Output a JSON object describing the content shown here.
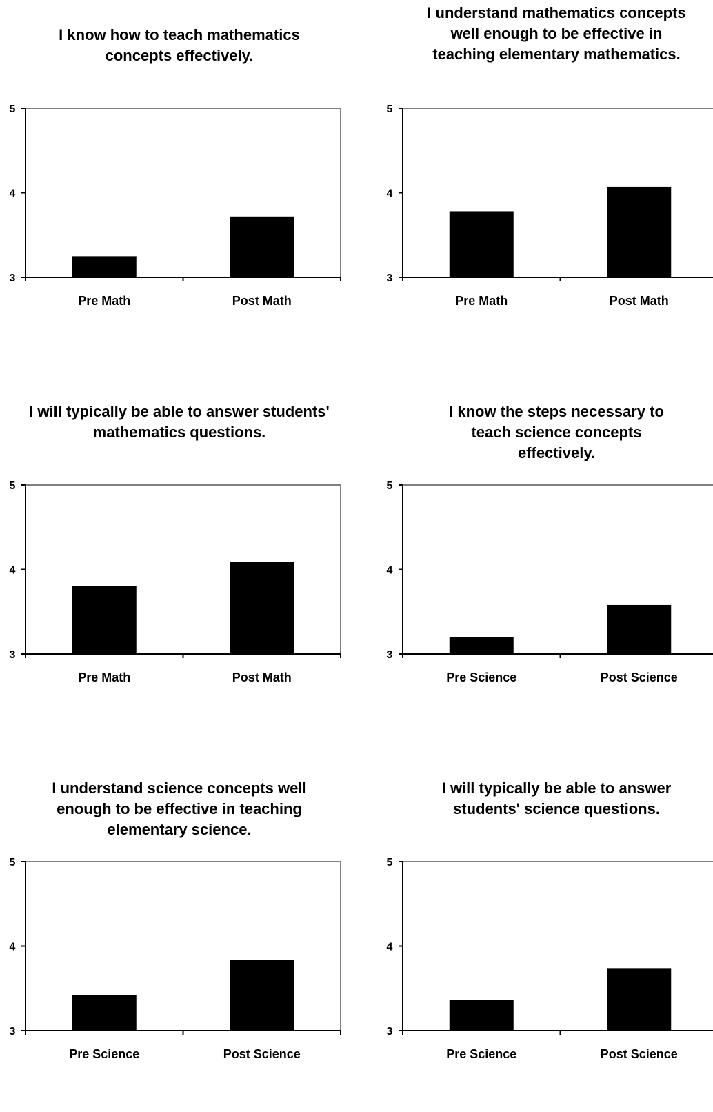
{
  "chart_data": [
    {
      "type": "bar",
      "title": "I know how to teach mathematics concepts effectively.",
      "categories": [
        "Pre Math",
        "Post Math"
      ],
      "values": [
        3.25,
        3.72
      ],
      "ylim": [
        3,
        5
      ],
      "yticks": [
        "3",
        "4",
        "5"
      ],
      "bar_color": "#000000",
      "grid": false
    },
    {
      "type": "bar",
      "title": "I understand mathematics concepts well enough to be effective in teaching elementary mathematics.",
      "categories": [
        "Pre Math",
        "Post Math"
      ],
      "values": [
        3.78,
        4.07
      ],
      "ylim": [
        3,
        5
      ],
      "yticks": [
        "3",
        "4",
        "5"
      ],
      "bar_color": "#000000",
      "grid": false
    },
    {
      "type": "bar",
      "title": "I will typically be able to answer students' mathematics questions.",
      "categories": [
        "Pre Math",
        "Post Math"
      ],
      "values": [
        3.8,
        4.09
      ],
      "ylim": [
        3,
        5
      ],
      "yticks": [
        "3",
        "4",
        "5"
      ],
      "bar_color": "#000000",
      "grid": false
    },
    {
      "type": "bar",
      "title": "I know the steps necessary to teach science concepts effectively.",
      "categories": [
        "Pre Science",
        "Post Science"
      ],
      "values": [
        3.2,
        3.58
      ],
      "ylim": [
        3,
        5
      ],
      "yticks": [
        "3",
        "4",
        "5"
      ],
      "bar_color": "#000000",
      "grid": false
    },
    {
      "type": "bar",
      "title": "I understand science concepts well enough to be effective in teaching elementary science.",
      "categories": [
        "Pre Science",
        "Post Science"
      ],
      "values": [
        3.42,
        3.84
      ],
      "ylim": [
        3,
        5
      ],
      "yticks": [
        "3",
        "4",
        "5"
      ],
      "bar_color": "#000000",
      "grid": false
    },
    {
      "type": "bar",
      "title": "I will typically be able to answer students' science questions.",
      "categories": [
        "Pre Science",
        "Post Science"
      ],
      "values": [
        3.36,
        3.74
      ],
      "ylim": [
        3,
        5
      ],
      "yticks": [
        "3",
        "4",
        "5"
      ],
      "bar_color": "#000000",
      "grid": false
    }
  ]
}
